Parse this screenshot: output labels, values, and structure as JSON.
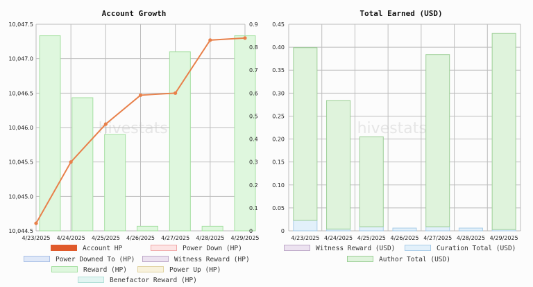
{
  "chart_data": [
    {
      "type": "bar",
      "title": "Account Growth",
      "categories": [
        "4/23/2025",
        "4/24/2025",
        "4/25/2025",
        "4/26/2025",
        "4/27/2025",
        "4/28/2025",
        "4/29/2025"
      ],
      "ylim": [
        10044.5,
        10047.5
      ],
      "yticks": [
        "10,044.5",
        "10,045.0",
        "10,045.5",
        "10,046.0",
        "10,046.5",
        "10,047.0",
        "10,047.5"
      ],
      "y2lim": [
        0,
        0.9
      ],
      "y2ticks": [
        "0",
        "0.1",
        "0.2",
        "0.3",
        "0.4",
        "0.5",
        "0.6",
        "0.7",
        "0.8",
        "0.9"
      ],
      "series": [
        {
          "name": "Account HP",
          "type": "line",
          "axis": "left",
          "color": "#e8804a",
          "points": [
            [
              0,
              10044.61
            ],
            [
              1,
              10045.5
            ],
            [
              2,
              10046.05
            ],
            [
              3,
              10046.47
            ],
            [
              4,
              10046.5
            ],
            [
              5,
              10047.27
            ],
            [
              6,
              10047.3
            ]
          ]
        },
        {
          "name": "Reward (HP)",
          "type": "bar",
          "axis": "right",
          "color": "#dff7de",
          "stroke": "#a6e0a2",
          "values": [
            0.85,
            0.58,
            0.42,
            0.02,
            0.78,
            0.02,
            0.85
          ]
        }
      ],
      "legend": [
        {
          "label": "Account HP",
          "fill": "#e05a2b",
          "stroke": "#e05a2b"
        },
        {
          "label": "Power Down (HP)",
          "fill": "#fde4e4",
          "stroke": "#f0a8a8"
        },
        {
          "label": "Power Downed To (HP)",
          "fill": "#dfe8f8",
          "stroke": "#a8bfe6"
        },
        {
          "label": "Witness Reward (HP)",
          "fill": "#ece2f0",
          "stroke": "#bda8c8"
        },
        {
          "label": "Reward (HP)",
          "fill": "#dff7de",
          "stroke": "#a6e0a2"
        },
        {
          "label": "Power Up (HP)",
          "fill": "#f8f2dc",
          "stroke": "#e0d2a0"
        },
        {
          "label": "Benefactor Reward (HP)",
          "fill": "#e2f5f2",
          "stroke": "#b2e0d8"
        }
      ],
      "watermark": "hivestats.io"
    },
    {
      "type": "bar",
      "title": "Total Earned (USD)",
      "categories": [
        "4/23/2025",
        "4/24/2025",
        "4/25/2025",
        "4/26/2025",
        "4/27/2025",
        "4/28/2025",
        "4/29/2025"
      ],
      "ylim": [
        0,
        0.45
      ],
      "yticks": [
        "0",
        "0.05",
        "0.10",
        "0.15",
        "0.20",
        "0.25",
        "0.30",
        "0.35",
        "0.40",
        "0.45"
      ],
      "stacked": true,
      "series": [
        {
          "name": "Curation Total (USD)",
          "color": "#e2f0fa",
          "stroke": "#a8cce8",
          "values": [
            0.023,
            0.004,
            0.009,
            0.006,
            0.009,
            0.006,
            0.003
          ]
        },
        {
          "name": "Author Total (USD)",
          "color": "#dff3dc",
          "stroke": "#9ccf96",
          "values": [
            0.376,
            0.28,
            0.196,
            0.0,
            0.375,
            0.0,
            0.427
          ]
        }
      ],
      "legend": [
        {
          "label": "Witness Reward (USD)",
          "fill": "#ece2f0",
          "stroke": "#bda8c8"
        },
        {
          "label": "Curation Total (USD)",
          "fill": "#e2f0fa",
          "stroke": "#a8cce8"
        },
        {
          "label": "Author Total (USD)",
          "fill": "#dff3dc",
          "stroke": "#9ccf96"
        }
      ],
      "watermark": "hivestats.io"
    }
  ]
}
